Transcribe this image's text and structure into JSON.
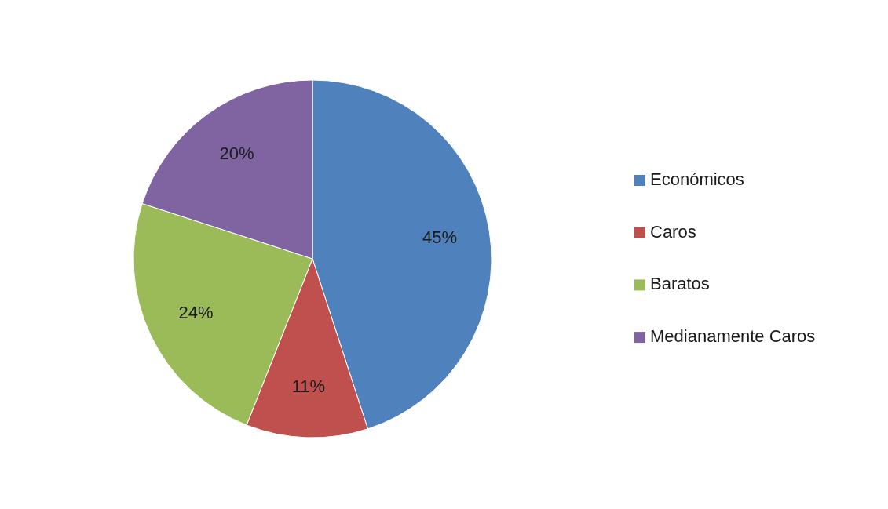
{
  "chart_data": {
    "type": "pie",
    "categories": [
      "Económicos",
      "Caros",
      "Baratos",
      "Medianamente Caros"
    ],
    "values": [
      45,
      11,
      24,
      20
    ],
    "colors": [
      "#4f81bd",
      "#c0504d",
      "#9bbb59",
      "#8064a2"
    ],
    "value_labels": [
      "45%",
      "11%",
      "24%",
      "20%"
    ],
    "legend": "right"
  }
}
